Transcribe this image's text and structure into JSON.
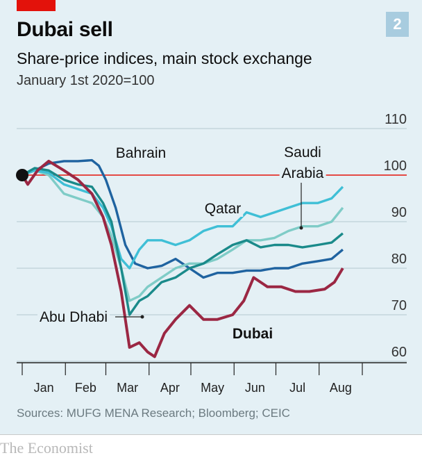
{
  "header": {
    "title": "Dubai sell",
    "chart_number": "2",
    "subtitle": "Share-price indices, main stock exchange",
    "unit_note": "January 1st 2020=100"
  },
  "footer": {
    "source": "Sources: MUFG MENA Research; Bloomberg; CEIC",
    "brand": "The Economist"
  },
  "colors": {
    "panel_background": "#e4f0f5",
    "accent_red": "#e3120b",
    "gridline": "#b5c7cf",
    "reference_line": "#e3120b",
    "Bahrain": "#1f63a0",
    "Saudi Arabia": "#7fccc7",
    "Qatar": "#3fbfd6",
    "Abu Dhabi": "#1a8a8a",
    "Dubai": "#9b2743"
  },
  "chart_data": {
    "type": "line",
    "title": "Dubai sell",
    "subtitle": "Share-price indices, main stock exchange",
    "ylabel": "January 1st 2020=100",
    "ylim": [
      60,
      110
    ],
    "y_ticks": [
      60,
      70,
      80,
      90,
      100,
      110
    ],
    "x_tick_labels": [
      "Jan",
      "Feb",
      "Mar",
      "Apr",
      "May",
      "Jun",
      "Jul",
      "Aug"
    ],
    "reference_line": 100,
    "grid": true,
    "start_marker": 100,
    "series": [
      {
        "name": "Bahrain",
        "points": [
          [
            "2020-01-01",
            100
          ],
          [
            "2020-01-10",
            101
          ],
          [
            "2020-01-20",
            102.5
          ],
          [
            "2020-01-31",
            103
          ],
          [
            "2020-02-10",
            103
          ],
          [
            "2020-02-20",
            103.2
          ],
          [
            "2020-02-25",
            102
          ],
          [
            "2020-03-01",
            99
          ],
          [
            "2020-03-08",
            93
          ],
          [
            "2020-03-15",
            85
          ],
          [
            "2020-03-22",
            81
          ],
          [
            "2020-03-31",
            80
          ],
          [
            "2020-04-10",
            80.5
          ],
          [
            "2020-04-20",
            82
          ],
          [
            "2020-04-30",
            80
          ],
          [
            "2020-05-10",
            78
          ],
          [
            "2020-05-20",
            79
          ],
          [
            "2020-05-31",
            79
          ],
          [
            "2020-06-10",
            79.5
          ],
          [
            "2020-06-20",
            79.5
          ],
          [
            "2020-06-30",
            80
          ],
          [
            "2020-07-10",
            80
          ],
          [
            "2020-07-20",
            81
          ],
          [
            "2020-07-31",
            81.5
          ],
          [
            "2020-08-10",
            82
          ],
          [
            "2020-08-18",
            84
          ]
        ]
      },
      {
        "name": "Saudi Arabia",
        "points": [
          [
            "2020-01-01",
            100
          ],
          [
            "2020-01-10",
            101
          ],
          [
            "2020-01-20",
            100
          ],
          [
            "2020-01-31",
            96
          ],
          [
            "2020-02-10",
            95
          ],
          [
            "2020-02-20",
            94
          ],
          [
            "2020-02-28",
            91
          ],
          [
            "2020-03-05",
            87
          ],
          [
            "2020-03-12",
            80
          ],
          [
            "2020-03-18",
            73
          ],
          [
            "2020-03-25",
            74
          ],
          [
            "2020-03-31",
            76
          ],
          [
            "2020-04-10",
            78
          ],
          [
            "2020-04-20",
            80
          ],
          [
            "2020-04-30",
            81
          ],
          [
            "2020-05-10",
            81
          ],
          [
            "2020-05-20",
            82
          ],
          [
            "2020-05-31",
            84
          ],
          [
            "2020-06-10",
            86
          ],
          [
            "2020-06-20",
            86
          ],
          [
            "2020-06-30",
            86.5
          ],
          [
            "2020-07-10",
            88
          ],
          [
            "2020-07-20",
            89
          ],
          [
            "2020-07-31",
            89
          ],
          [
            "2020-08-10",
            90
          ],
          [
            "2020-08-18",
            93
          ]
        ]
      },
      {
        "name": "Qatar",
        "points": [
          [
            "2020-01-01",
            100
          ],
          [
            "2020-01-10",
            101
          ],
          [
            "2020-01-20",
            100.5
          ],
          [
            "2020-01-31",
            98
          ],
          [
            "2020-02-10",
            97
          ],
          [
            "2020-02-20",
            96
          ],
          [
            "2020-02-28",
            93
          ],
          [
            "2020-03-05",
            89
          ],
          [
            "2020-03-12",
            82
          ],
          [
            "2020-03-18",
            80
          ],
          [
            "2020-03-25",
            84
          ],
          [
            "2020-03-31",
            86
          ],
          [
            "2020-04-10",
            86
          ],
          [
            "2020-04-20",
            85
          ],
          [
            "2020-04-30",
            86
          ],
          [
            "2020-05-10",
            88
          ],
          [
            "2020-05-20",
            89
          ],
          [
            "2020-05-31",
            89
          ],
          [
            "2020-06-10",
            92
          ],
          [
            "2020-06-20",
            91
          ],
          [
            "2020-06-30",
            92
          ],
          [
            "2020-07-10",
            93
          ],
          [
            "2020-07-20",
            94
          ],
          [
            "2020-07-31",
            94
          ],
          [
            "2020-08-10",
            95
          ],
          [
            "2020-08-18",
            97.5
          ]
        ]
      },
      {
        "name": "Abu Dhabi",
        "points": [
          [
            "2020-01-01",
            100
          ],
          [
            "2020-01-10",
            101.5
          ],
          [
            "2020-01-20",
            101
          ],
          [
            "2020-01-31",
            99
          ],
          [
            "2020-02-10",
            98
          ],
          [
            "2020-02-20",
            97.5
          ],
          [
            "2020-02-28",
            94
          ],
          [
            "2020-03-05",
            90
          ],
          [
            "2020-03-12",
            80
          ],
          [
            "2020-03-18",
            70
          ],
          [
            "2020-03-25",
            73
          ],
          [
            "2020-03-31",
            74
          ],
          [
            "2020-04-10",
            77
          ],
          [
            "2020-04-20",
            78
          ],
          [
            "2020-04-30",
            80
          ],
          [
            "2020-05-10",
            81
          ],
          [
            "2020-05-20",
            83
          ],
          [
            "2020-05-31",
            85
          ],
          [
            "2020-06-10",
            86
          ],
          [
            "2020-06-20",
            84.5
          ],
          [
            "2020-06-30",
            85
          ],
          [
            "2020-07-10",
            85
          ],
          [
            "2020-07-20",
            84.5
          ],
          [
            "2020-07-31",
            85
          ],
          [
            "2020-08-10",
            85.5
          ],
          [
            "2020-08-18",
            87.5
          ]
        ]
      },
      {
        "name": "Dubai",
        "points": [
          [
            "2020-01-01",
            100
          ],
          [
            "2020-01-05",
            98
          ],
          [
            "2020-01-12",
            101
          ],
          [
            "2020-01-20",
            103
          ],
          [
            "2020-01-31",
            101
          ],
          [
            "2020-02-10",
            99
          ],
          [
            "2020-02-20",
            96
          ],
          [
            "2020-02-28",
            91
          ],
          [
            "2020-03-05",
            85
          ],
          [
            "2020-03-12",
            75
          ],
          [
            "2020-03-18",
            63
          ],
          [
            "2020-03-25",
            64
          ],
          [
            "2020-03-31",
            62
          ],
          [
            "2020-04-05",
            61
          ],
          [
            "2020-04-12",
            66
          ],
          [
            "2020-04-20",
            69
          ],
          [
            "2020-04-30",
            72
          ],
          [
            "2020-05-10",
            69
          ],
          [
            "2020-05-20",
            69
          ],
          [
            "2020-05-31",
            70
          ],
          [
            "2020-06-08",
            73
          ],
          [
            "2020-06-15",
            78
          ],
          [
            "2020-06-25",
            76
          ],
          [
            "2020-07-05",
            76
          ],
          [
            "2020-07-15",
            75
          ],
          [
            "2020-07-25",
            75
          ],
          [
            "2020-08-05",
            75.5
          ],
          [
            "2020-08-12",
            77
          ],
          [
            "2020-08-18",
            80
          ]
        ]
      }
    ],
    "annotations": [
      "Bahrain",
      "Saudi Arabia",
      "Qatar",
      "Abu Dhabi",
      "Dubai"
    ]
  }
}
